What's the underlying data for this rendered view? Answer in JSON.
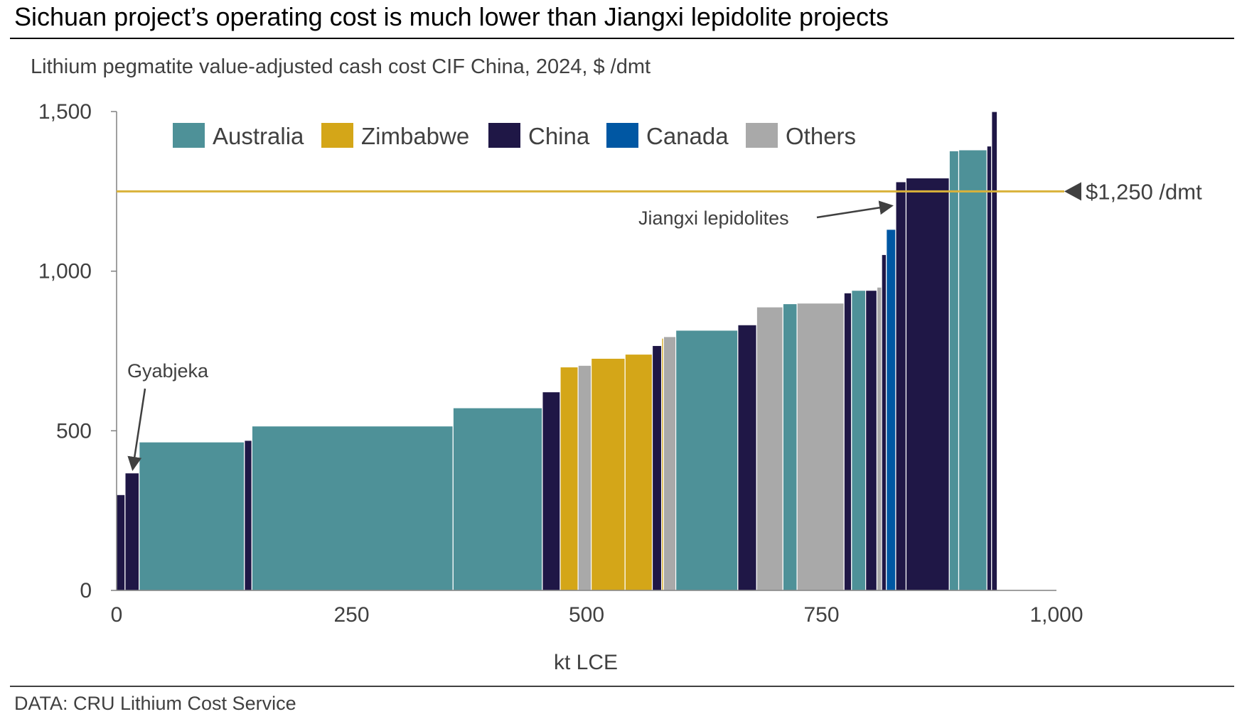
{
  "title": "Sichuan project’s operating cost is much lower than Jiangxi lepidolite projects",
  "source": "DATA: CRU Lithium Cost Service",
  "colors": {
    "Australia": "#4E9198",
    "Zimbabwe": "#D4A618",
    "China": "#1F1746",
    "Canada": "#0057A3",
    "Others": "#A9A9A9",
    "reference_line": "#D9B23A"
  },
  "chart_data": {
    "type": "bar",
    "subtype": "cost-curve (variable-width bars)",
    "title": "Lithium pegmatite value-adjusted cash cost CIF China, 2024, $ /dmt",
    "xlabel": "kt LCE",
    "ylabel": "",
    "xlim": [
      0,
      1000
    ],
    "ylim": [
      0,
      1500
    ],
    "xticks": [
      "0",
      "250",
      "500",
      "750",
      "1,000"
    ],
    "xtick_values": [
      0,
      250,
      500,
      750,
      1000
    ],
    "yticks": [
      "0",
      "500",
      "1,000",
      "1,500"
    ],
    "ytick_values": [
      0,
      500,
      1000,
      1500
    ],
    "grid": false,
    "legend": {
      "placement": "top-left",
      "entries": [
        "Australia",
        "Zimbabwe",
        "China",
        "Canada",
        "Others"
      ]
    },
    "reference_line": {
      "value": 1250,
      "label": "$1,250 /dmt"
    },
    "annotations": [
      {
        "text": "Gyabjeka",
        "points_to_x": 17,
        "points_to_y": 370
      },
      {
        "text": "Jiangxi lepidolites",
        "points_to_x": 832,
        "points_to_y": 1210
      }
    ],
    "bars": [
      {
        "country": "China",
        "width": 9,
        "cost": 300
      },
      {
        "country": "China",
        "width": 15,
        "cost": 368
      },
      {
        "country": "Australia",
        "width": 112,
        "cost": 465
      },
      {
        "country": "China",
        "width": 8,
        "cost": 470
      },
      {
        "country": "Australia",
        "width": 214,
        "cost": 515
      },
      {
        "country": "Australia",
        "width": 95,
        "cost": 572
      },
      {
        "country": "China",
        "width": 19,
        "cost": 622
      },
      {
        "country": "Zimbabwe",
        "width": 19,
        "cost": 700
      },
      {
        "country": "Others",
        "width": 14,
        "cost": 705
      },
      {
        "country": "Zimbabwe",
        "width": 36,
        "cost": 727
      },
      {
        "country": "Zimbabwe",
        "width": 29,
        "cost": 740
      },
      {
        "country": "China",
        "width": 10,
        "cost": 767
      },
      {
        "country": "Zimbabwe",
        "width": 2,
        "cost": 790
      },
      {
        "country": "Others",
        "width": 13,
        "cost": 795
      },
      {
        "country": "Australia",
        "width": 66,
        "cost": 815
      },
      {
        "country": "China",
        "width": 20,
        "cost": 832
      },
      {
        "country": "Others",
        "width": 28,
        "cost": 888
      },
      {
        "country": "Australia",
        "width": 15,
        "cost": 898
      },
      {
        "country": "Others",
        "width": 50,
        "cost": 900
      },
      {
        "country": "China",
        "width": 8,
        "cost": 932
      },
      {
        "country": "Australia",
        "width": 15,
        "cost": 940
      },
      {
        "country": "China",
        "width": 12,
        "cost": 940
      },
      {
        "country": "Others",
        "width": 5,
        "cost": 950
      },
      {
        "country": "China",
        "width": 5,
        "cost": 1052
      },
      {
        "country": "Canada",
        "width": 10,
        "cost": 1131
      },
      {
        "country": "China",
        "width": 11,
        "cost": 1280
      },
      {
        "country": "China",
        "width": 46,
        "cost": 1292
      },
      {
        "country": "Australia",
        "width": 10,
        "cost": 1377
      },
      {
        "country": "Australia",
        "width": 30,
        "cost": 1380
      },
      {
        "country": "China",
        "width": 5,
        "cost": 1392
      },
      {
        "country": "China",
        "width": 6,
        "cost": 1500
      }
    ]
  }
}
